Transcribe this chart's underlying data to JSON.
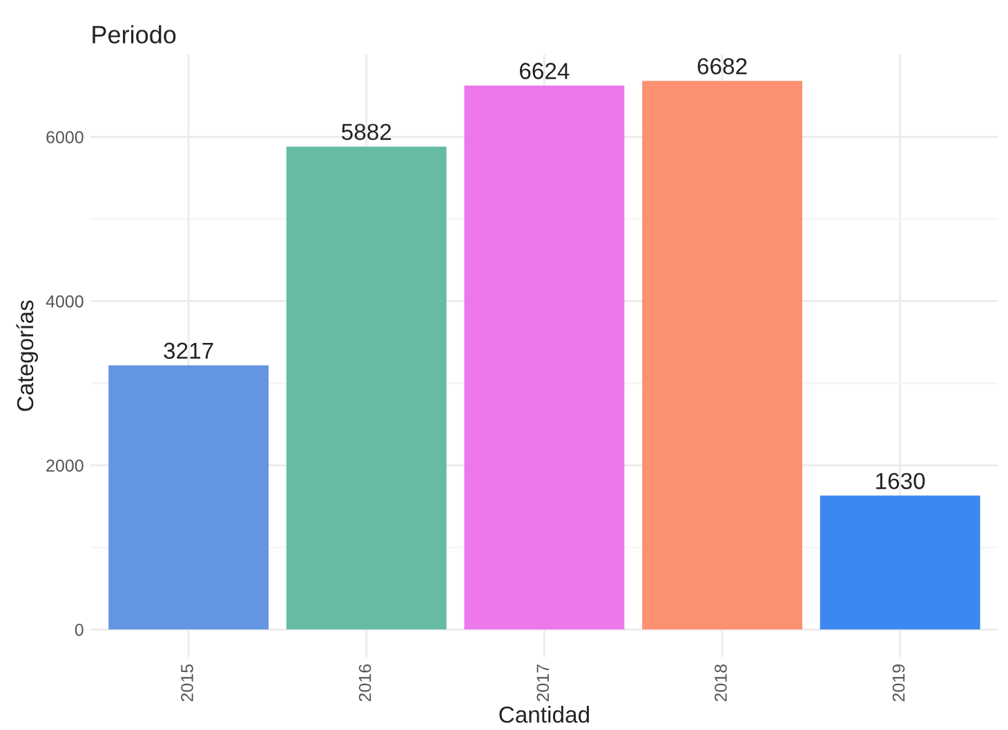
{
  "chart_data": {
    "type": "bar",
    "title": "Periodo",
    "xlabel": "Cantidad",
    "ylabel": "Categorías",
    "categories": [
      "2015",
      "2016",
      "2017",
      "2018",
      "2019"
    ],
    "values": [
      3217,
      5882,
      6624,
      6682,
      1630
    ],
    "colors": [
      "#6495e0",
      "#66bca2",
      "#ec78ec",
      "#fc9172",
      "#3d87f0"
    ],
    "ylim": [
      -335,
      7000
    ],
    "yticks": [
      0,
      2000,
      4000,
      6000
    ],
    "grid": true,
    "data_labels": true
  }
}
